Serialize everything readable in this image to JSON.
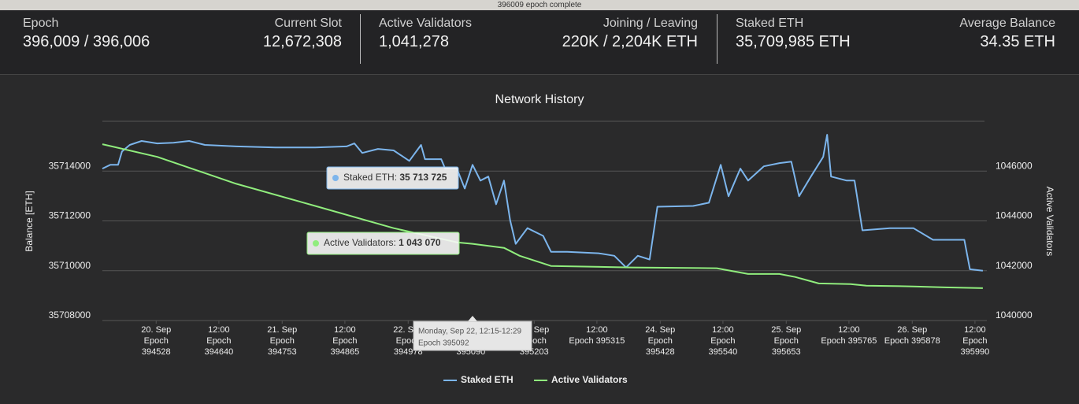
{
  "status_bar": "396009 epoch complete",
  "stats": [
    {
      "label": "Epoch",
      "value": "396,009 / 396,006"
    },
    {
      "label": "Current Slot",
      "value": "12,672,308"
    },
    {
      "label": "Active Validators",
      "value": "1,041,278"
    },
    {
      "label": "Joining / Leaving",
      "value": "220K / 2,204K ETH"
    },
    {
      "label": "Staked ETH",
      "value": "35,709,985 ETH"
    },
    {
      "label": "Average Balance",
      "value": "34.35 ETH"
    }
  ],
  "chart_data": {
    "type": "line",
    "title": "Network History",
    "y_label": "Balance [ETH]",
    "y2_label": "Active Validators",
    "xlim": [
      394432,
      396007
    ],
    "xticks": [
      {
        "value": 394528,
        "label": "20. Sep\nEpoch\n394528"
      },
      {
        "value": 394640,
        "label": "12:00\nEpoch\n394640"
      },
      {
        "value": 394753,
        "label": "21. Sep\nEpoch\n394753"
      },
      {
        "value": 394865,
        "label": "12:00\nEpoch\n394865"
      },
      {
        "value": 394978,
        "label": "22. Sep\nEpoch\n394978"
      },
      {
        "value": 395090,
        "label": "12:00\nEpoch\n395090"
      },
      {
        "value": 395203,
        "label": "23. Sep\nEpoch\n395203"
      },
      {
        "value": 395315,
        "label": "12:00\nEpoch 395315"
      },
      {
        "value": 395428,
        "label": "24. Sep\nEpoch\n395428"
      },
      {
        "value": 395540,
        "label": "12:00\nEpoch\n395540"
      },
      {
        "value": 395653,
        "label": "25. Sep\nEpoch\n395653"
      },
      {
        "value": 395765,
        "label": "12:00\nEpoch 395765"
      },
      {
        "value": 395878,
        "label": "26. Sep\nEpoch 395878"
      },
      {
        "value": 395990,
        "label": "12:00\nEpoch\n395990"
      }
    ],
    "ylim": [
      35708000,
      35716000
    ],
    "yticks": [
      35708000,
      35710000,
      35712000,
      35714000
    ],
    "y2lim": [
      1040000,
      1048000
    ],
    "y2ticks": [
      1040000,
      1042000,
      1044000,
      1046000
    ],
    "grid": true,
    "legend": "bottom",
    "series": [
      {
        "name": "Staked ETH",
        "color": "#7cb5ec",
        "axis": "y",
        "x": [
          394432,
          394446,
          394460,
          394467,
          394481,
          394502,
          394530,
          394559,
          394587,
          394615,
          394671,
          394741,
          394812,
          394868,
          394882,
          394896,
          394924,
          394952,
          394980,
          395001,
          395008,
          395037,
          395044,
          395065,
          395079,
          395093,
          395107,
          395121,
          395135,
          395149,
          395160,
          395170,
          395191,
          395219,
          395233,
          395262,
          395318,
          395346,
          395367,
          395388,
          395409,
          395423,
          395487,
          395515,
          395536,
          395550,
          395571,
          395585,
          395613,
          395641,
          395662,
          395676,
          395697,
          395719,
          395726,
          395733,
          395761,
          395775,
          395789,
          395838,
          395880,
          395915,
          395950,
          395971,
          395981,
          396004
        ],
        "values": [
          35714100,
          35714250,
          35714250,
          35714790,
          35715050,
          35715210,
          35715110,
          35715140,
          35715210,
          35715050,
          35714990,
          35714950,
          35714950,
          35714990,
          35715110,
          35714730,
          35714890,
          35714830,
          35714410,
          35715050,
          35714480,
          35714480,
          35714100,
          35714100,
          35713300,
          35714250,
          35713620,
          35713780,
          35712670,
          35713620,
          35712030,
          35711080,
          35711710,
          35711400,
          35710760,
          35710760,
          35710700,
          35710600,
          35710130,
          35710600,
          35710450,
          35712570,
          35712600,
          35712730,
          35714250,
          35712990,
          35714100,
          35713620,
          35714190,
          35714320,
          35714380,
          35712990,
          35713780,
          35714570,
          35715460,
          35713780,
          35713620,
          35713620,
          35711620,
          35711710,
          35711710,
          35711240,
          35711240,
          35711240,
          35710060,
          35710000
        ]
      },
      {
        "name": "Active Validators",
        "color": "#90ed7d",
        "axis": "y2",
        "x": [
          394432,
          394530,
          394671,
          394812,
          394952,
          395065,
          395093,
          395149,
          395177,
          395233,
          395374,
          395529,
          395585,
          395641,
          395669,
          395711,
          395768,
          395796,
          395880,
          395936,
          396004
        ],
        "values": [
          1047080,
          1046570,
          1045490,
          1044600,
          1043710,
          1043140,
          1043080,
          1042920,
          1042600,
          1042190,
          1042130,
          1042100,
          1041870,
          1041870,
          1041750,
          1041490,
          1041460,
          1041400,
          1041370,
          1041330,
          1041300
        ]
      }
    ],
    "tooltips": {
      "staked": {
        "label": "Staked ETH: ",
        "value": "35 713 725"
      },
      "validators": {
        "label": "Active Validators: ",
        "value": "1 043 070"
      },
      "x_header": "Monday, Sep 22, 12:15-12:29",
      "x_epoch": "Epoch 395092"
    }
  }
}
